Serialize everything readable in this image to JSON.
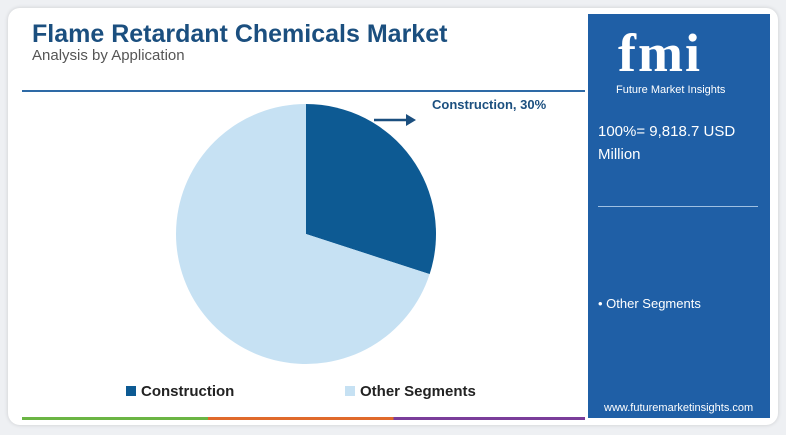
{
  "chart_data": {
    "type": "pie",
    "title": "Flame Retardant Chemicals Market",
    "subtitle": "Analysis by Application",
    "categories": [
      "Construction",
      "Other Segments"
    ],
    "values": [
      30,
      70
    ],
    "value_labels": [
      "Construction, 30%",
      null
    ],
    "colors": [
      "#0d5a93",
      "#c6e1f3"
    ]
  },
  "logo": {
    "mark": "fmi",
    "name": "Future Market Insights"
  },
  "panel": {
    "total": "100%= 9,818.7 USD Million",
    "note": "• Other Segments",
    "website": "www.futuremarketinsights.com"
  }
}
